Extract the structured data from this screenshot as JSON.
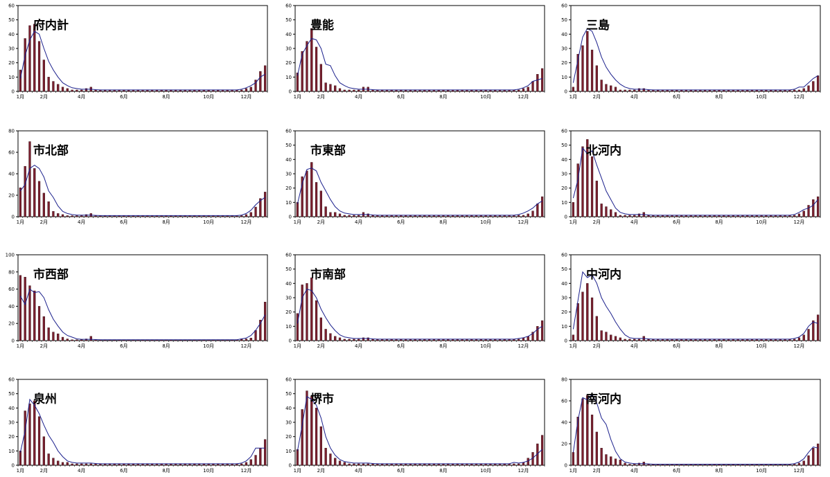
{
  "x_tick_labels": [
    "1月",
    "2月",
    "4月",
    "6月",
    "8月",
    "10月",
    "12月"
  ],
  "colors": {
    "bar": "#7a1f2e",
    "line": "#1a1f8c",
    "frame": "#000000"
  },
  "chart_data": [
    {
      "type": "bar",
      "title": "府内計",
      "ylim": [
        0,
        60
      ],
      "yticks": [
        0,
        10,
        20,
        30,
        40,
        50,
        60
      ],
      "values": [
        15,
        37,
        46,
        47,
        35,
        22,
        10,
        7,
        5,
        3,
        2,
        1,
        1,
        1,
        2,
        3,
        1,
        1,
        1,
        1,
        1,
        1,
        1,
        1,
        1,
        1,
        1,
        1,
        1,
        1,
        1,
        1,
        1,
        1,
        1,
        1,
        1,
        1,
        1,
        1,
        1,
        1,
        1,
        1,
        1,
        1,
        1,
        1,
        2,
        3,
        8,
        14,
        18
      ],
      "line": [
        9,
        25,
        36,
        42,
        40,
        30,
        21,
        15,
        10,
        6,
        4,
        2.5,
        2,
        1.5,
        1.5,
        1.5,
        1.2,
        1,
        1,
        1,
        1,
        1,
        1,
        1,
        1,
        1,
        1,
        1,
        1,
        1,
        1,
        1,
        1,
        1,
        1,
        1,
        1,
        1,
        1,
        1,
        1,
        1,
        1,
        1,
        1,
        1,
        1,
        1.5,
        2.5,
        4,
        6,
        10,
        12
      ]
    },
    {
      "type": "bar",
      "title": "豊能",
      "ylim": [
        0,
        60
      ],
      "yticks": [
        0,
        10,
        20,
        30,
        40,
        50,
        60
      ],
      "values": [
        13,
        28,
        35,
        44,
        31,
        19,
        6,
        5,
        4,
        2,
        1,
        1,
        1,
        1,
        3,
        3,
        1,
        1,
        1,
        1,
        1,
        1,
        1,
        1,
        1,
        1,
        1,
        1,
        1,
        1,
        1,
        1,
        1,
        1,
        1,
        1,
        1,
        1,
        1,
        1,
        1,
        1,
        1,
        1,
        1,
        1,
        1,
        1,
        2,
        3,
        7,
        12,
        16
      ],
      "line": [
        11,
        26,
        32,
        37,
        36,
        30,
        19,
        18,
        11,
        6,
        4,
        2.5,
        2,
        1.5,
        1.5,
        1.5,
        1.2,
        1,
        1,
        1,
        1,
        1,
        1,
        1,
        1,
        1,
        1,
        1,
        1,
        1,
        1,
        1,
        1,
        1,
        1,
        1,
        1,
        1,
        1,
        1,
        1,
        1,
        1,
        1,
        1,
        1,
        1,
        1.5,
        2.5,
        4,
        7,
        8,
        9
      ]
    },
    {
      "type": "bar",
      "title": "三島",
      "ylim": [
        0,
        60
      ],
      "yticks": [
        0,
        10,
        20,
        30,
        40,
        50,
        60
      ],
      "values": [
        3,
        26,
        32,
        42,
        29,
        18,
        8,
        5,
        4,
        3,
        1,
        1,
        1,
        1,
        2,
        2,
        1,
        1,
        1,
        1,
        1,
        1,
        1,
        1,
        1,
        1,
        1,
        1,
        1,
        1,
        1,
        1,
        1,
        1,
        1,
        1,
        1,
        1,
        1,
        1,
        1,
        1,
        1,
        1,
        1,
        1,
        1,
        1,
        1,
        2,
        4,
        7,
        11
      ],
      "line": [
        6,
        22,
        38,
        44,
        42,
        34,
        24,
        17,
        12,
        8,
        5,
        3,
        2,
        1.5,
        1.5,
        1.5,
        1.2,
        1,
        1,
        1,
        1,
        1,
        1,
        1,
        1,
        1,
        1,
        1,
        1,
        1,
        1,
        1,
        1,
        1,
        1,
        1,
        1,
        1,
        1,
        1,
        1,
        1,
        1,
        1,
        1,
        1,
        1,
        1.5,
        3,
        3,
        6,
        9,
        11
      ]
    },
    {
      "type": "bar",
      "title": "市北部",
      "ylim": [
        0,
        80
      ],
      "yticks": [
        0,
        20,
        40,
        60,
        80
      ],
      "values": [
        27,
        47,
        70,
        45,
        33,
        22,
        14,
        5,
        3,
        2,
        1,
        1,
        1,
        1,
        2,
        3,
        1,
        1,
        1,
        1,
        1,
        1,
        1,
        1,
        1,
        1,
        1,
        1,
        1,
        1,
        1,
        1,
        1,
        1,
        1,
        1,
        1,
        1,
        1,
        1,
        1,
        1,
        1,
        1,
        1,
        1,
        1,
        1,
        2,
        4,
        9,
        17,
        23
      ],
      "line": [
        24,
        30,
        45,
        48,
        45,
        37,
        24,
        18,
        10,
        5,
        3,
        2,
        1.5,
        1.5,
        1.5,
        1.5,
        1.2,
        1,
        1,
        1,
        1,
        1,
        1,
        1,
        1,
        1,
        1,
        1,
        1,
        1,
        1,
        1,
        1,
        1,
        1,
        1,
        1,
        1,
        1,
        1,
        1,
        1,
        1,
        1,
        1,
        1,
        1,
        1.5,
        3,
        6,
        11,
        15,
        18
      ]
    },
    {
      "type": "bar",
      "title": "市東部",
      "ylim": [
        0,
        60
      ],
      "yticks": [
        0,
        10,
        20,
        30,
        40,
        50,
        60
      ],
      "values": [
        10,
        28,
        32,
        38,
        24,
        18,
        7,
        3,
        3,
        2,
        1,
        1,
        1,
        1,
        3,
        2,
        1,
        1,
        1,
        1,
        1,
        1,
        1,
        1,
        1,
        1,
        1,
        1,
        1,
        1,
        1,
        1,
        1,
        1,
        1,
        1,
        1,
        1,
        1,
        1,
        1,
        1,
        1,
        1,
        1,
        1,
        1,
        1,
        1,
        2,
        4,
        9,
        14
      ],
      "line": [
        9,
        23,
        33,
        34,
        32,
        24,
        18,
        12,
        7,
        4,
        2.5,
        2,
        1.5,
        1.5,
        1.5,
        1.5,
        1.2,
        1,
        1,
        1,
        1,
        1,
        1,
        1,
        1,
        1,
        1,
        1,
        1,
        1,
        1,
        1,
        1,
        1,
        1,
        1,
        1,
        1,
        1,
        1,
        1,
        1,
        1,
        1,
        1,
        1,
        1,
        1.5,
        2.5,
        4,
        6,
        9,
        11
      ]
    },
    {
      "type": "bar",
      "title": "北河内",
      "ylim": [
        0,
        60
      ],
      "yticks": [
        0,
        10,
        20,
        30,
        40,
        50,
        60
      ],
      "values": [
        10,
        37,
        49,
        54,
        42,
        25,
        9,
        7,
        5,
        3,
        1,
        1,
        1,
        1,
        2,
        3,
        1,
        1,
        1,
        1,
        1,
        1,
        1,
        1,
        1,
        1,
        1,
        1,
        1,
        1,
        1,
        1,
        1,
        1,
        1,
        1,
        1,
        1,
        1,
        1,
        1,
        1,
        1,
        1,
        1,
        1,
        1,
        1,
        2,
        4,
        8,
        12,
        14
      ],
      "line": [
        13,
        26,
        48,
        44,
        46,
        36,
        27,
        18,
        12,
        6,
        3,
        2,
        1.5,
        1.5,
        1.5,
        1.5,
        1.2,
        1,
        1,
        1,
        1,
        1,
        1,
        1,
        1,
        1,
        1,
        1,
        1,
        1,
        1,
        1,
        1,
        1,
        1,
        1,
        1,
        1,
        1,
        1,
        1,
        1,
        1,
        1,
        1,
        1,
        1,
        1.5,
        3,
        5,
        6,
        8,
        12
      ]
    },
    {
      "type": "bar",
      "title": "市西部",
      "ylim": [
        0,
        100
      ],
      "yticks": [
        0,
        20,
        40,
        60,
        80,
        100
      ],
      "values": [
        76,
        74,
        64,
        58,
        40,
        28,
        15,
        10,
        8,
        4,
        2,
        1,
        1,
        1,
        2,
        5,
        1,
        1,
        1,
        1,
        1,
        1,
        1,
        1,
        1,
        1,
        1,
        1,
        1,
        1,
        1,
        1,
        1,
        1,
        1,
        1,
        1,
        1,
        1,
        1,
        1,
        1,
        1,
        1,
        1,
        1,
        1,
        2,
        2,
        3,
        12,
        24,
        45
      ],
      "line": [
        52,
        42,
        60,
        56,
        57,
        50,
        36,
        25,
        17,
        10,
        6,
        4,
        2,
        1.5,
        1.5,
        1.5,
        1.2,
        1,
        1,
        1,
        1,
        1,
        1,
        1,
        1,
        1,
        1,
        1,
        1,
        1,
        1,
        1,
        1,
        1,
        1,
        1,
        1,
        1,
        1,
        1,
        1,
        1,
        1,
        1,
        1,
        1,
        1,
        2,
        3,
        6,
        12,
        20,
        30
      ]
    },
    {
      "type": "bar",
      "title": "市南部",
      "ylim": [
        0,
        60
      ],
      "yticks": [
        0,
        10,
        20,
        30,
        40,
        50,
        60
      ],
      "values": [
        19,
        39,
        40,
        44,
        28,
        16,
        8,
        5,
        3,
        2,
        1,
        1,
        1,
        1,
        2,
        2,
        1,
        1,
        1,
        1,
        1,
        1,
        1,
        1,
        1,
        1,
        1,
        1,
        1,
        1,
        1,
        1,
        1,
        1,
        1,
        1,
        1,
        1,
        1,
        1,
        1,
        1,
        1,
        1,
        1,
        1,
        1,
        1,
        2,
        3,
        6,
        10,
        14
      ],
      "line": [
        12,
        30,
        36,
        35,
        30,
        22,
        16,
        11,
        7,
        4,
        2.5,
        2,
        1.5,
        1.5,
        1.5,
        1.5,
        1.2,
        1,
        1,
        1,
        1,
        1,
        1,
        1,
        1,
        1,
        1,
        1,
        1,
        1,
        1,
        1,
        1,
        1,
        1,
        1,
        1,
        1,
        1,
        1,
        1,
        1,
        1,
        1,
        1,
        1,
        1,
        1.5,
        2,
        3,
        5,
        8,
        10
      ]
    },
    {
      "type": "bar",
      "title": "中河内",
      "ylim": [
        0,
        60
      ],
      "yticks": [
        0,
        10,
        20,
        30,
        40,
        50,
        60
      ],
      "values": [
        4,
        26,
        34,
        40,
        30,
        17,
        7,
        6,
        4,
        3,
        2,
        1,
        1,
        1,
        1,
        3,
        1,
        1,
        1,
        1,
        1,
        1,
        1,
        1,
        1,
        1,
        1,
        1,
        1,
        1,
        1,
        1,
        1,
        1,
        1,
        1,
        1,
        1,
        1,
        1,
        1,
        1,
        1,
        1,
        1,
        1,
        1,
        1,
        2,
        4,
        8,
        14,
        18
      ],
      "line": [
        8,
        28,
        48,
        44,
        46,
        40,
        30,
        24,
        19,
        13,
        8,
        4,
        2,
        1.5,
        1.5,
        1.5,
        1.2,
        1,
        1,
        1,
        1,
        1,
        1,
        1,
        1,
        1,
        1,
        1,
        1,
        1,
        1,
        1,
        1,
        1,
        1,
        1,
        1,
        1,
        1,
        1,
        1,
        1,
        1,
        1,
        1,
        1,
        1,
        1.5,
        2.5,
        5,
        10,
        13,
        12
      ]
    },
    {
      "type": "bar",
      "title": "泉州",
      "ylim": [
        0,
        60
      ],
      "yticks": [
        0,
        10,
        20,
        30,
        40,
        50,
        60
      ],
      "values": [
        10,
        38,
        43,
        45,
        34,
        20,
        8,
        5,
        3,
        2,
        2,
        1,
        1,
        1,
        1,
        1,
        1,
        1,
        1,
        1,
        1,
        1,
        1,
        1,
        1,
        1,
        1,
        1,
        1,
        1,
        1,
        1,
        1,
        1,
        1,
        1,
        1,
        1,
        1,
        1,
        1,
        1,
        1,
        1,
        1,
        1,
        1,
        1,
        2,
        4,
        7,
        12,
        18
      ],
      "line": [
        9,
        24,
        46,
        42,
        36,
        28,
        21,
        16,
        10,
        6,
        3,
        2,
        1.5,
        1.5,
        1.5,
        1.5,
        1.2,
        1,
        1,
        1,
        1,
        1,
        1,
        1,
        1,
        1,
        1,
        1,
        1,
        1,
        1,
        1,
        1,
        1,
        1,
        1,
        1,
        1,
        1,
        1,
        1,
        1,
        1,
        1,
        1,
        1,
        1,
        1.5,
        3,
        6,
        12,
        12,
        12
      ]
    },
    {
      "type": "bar",
      "title": "堺市",
      "ylim": [
        0,
        60
      ],
      "yticks": [
        0,
        10,
        20,
        30,
        40,
        50,
        60
      ],
      "values": [
        11,
        39,
        52,
        48,
        40,
        27,
        12,
        8,
        5,
        3,
        2,
        1,
        1,
        1,
        1,
        1,
        1,
        1,
        1,
        1,
        1,
        1,
        1,
        1,
        1,
        1,
        1,
        1,
        1,
        1,
        1,
        1,
        1,
        1,
        1,
        1,
        1,
        1,
        1,
        1,
        1,
        1,
        1,
        1,
        1,
        1,
        1,
        1,
        2,
        5,
        9,
        15,
        21
      ],
      "line": [
        10,
        28,
        48,
        46,
        42,
        33,
        20,
        12,
        7,
        4,
        2.5,
        2,
        1.5,
        1.5,
        1.5,
        1.5,
        1.2,
        1,
        1,
        1,
        1,
        1,
        1,
        1,
        1,
        1,
        1,
        1,
        1,
        1,
        1,
        1,
        1,
        1,
        1,
        1,
        1,
        1,
        1,
        1,
        1,
        1,
        1,
        1,
        1,
        1,
        2,
        1.5,
        2,
        3,
        5,
        8,
        11
      ]
    },
    {
      "type": "bar",
      "title": "南河内",
      "ylim": [
        0,
        80
      ],
      "yticks": [
        0,
        20,
        40,
        60,
        80
      ],
      "values": [
        12,
        45,
        62,
        65,
        47,
        31,
        16,
        10,
        8,
        6,
        5,
        2,
        1,
        1,
        2,
        3,
        1,
        1,
        1,
        1,
        1,
        1,
        1,
        1,
        1,
        1,
        1,
        1,
        1,
        1,
        1,
        1,
        1,
        1,
        1,
        1,
        1,
        1,
        1,
        1,
        1,
        1,
        1,
        1,
        1,
        1,
        1,
        1,
        2,
        4,
        9,
        16,
        20
      ],
      "line": [
        12,
        42,
        63,
        61,
        66,
        58,
        44,
        38,
        24,
        13,
        6,
        3,
        2,
        1.5,
        1.5,
        1.5,
        1.2,
        1,
        1,
        1,
        1,
        1,
        1,
        1,
        1,
        1,
        1,
        1,
        1,
        1,
        1,
        1,
        1,
        1,
        1,
        1,
        1,
        1,
        1,
        1,
        1,
        1,
        1,
        1,
        1,
        1,
        1,
        1.5,
        3,
        6,
        12,
        17,
        16
      ]
    }
  ]
}
